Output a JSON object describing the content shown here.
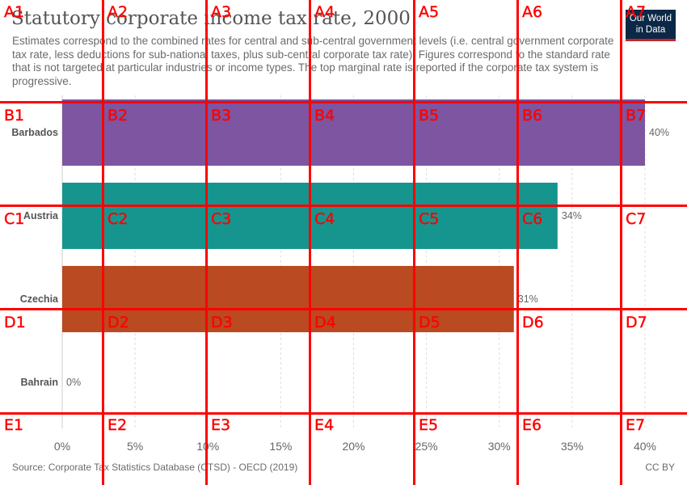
{
  "title": "Statutory corporate income tax rate, 2000",
  "subtitle": "Estimates correspond to the combined rates for central and sub-central government levels (i.e. central government corporate tax rate, less deductions for sub-national taxes, plus sub-central corporate tax rate). Figures correspond to the standard rate that is not targeted at particular industries or income types. The top marginal rate is reported if the corporate tax system is progressive.",
  "logo": {
    "line1": "Our World",
    "line2": "in Data"
  },
  "source": "Source: Corporate Tax Statistics Database (CTSD) - OECD (2019)",
  "license": "CC BY",
  "chart_data": {
    "type": "bar",
    "orientation": "horizontal",
    "categories": [
      "Barbados",
      "Austria",
      "Czechia",
      "Bahrain"
    ],
    "values": [
      40,
      34,
      31,
      0
    ],
    "value_labels": [
      "40%",
      "34%",
      "31%",
      "0%"
    ],
    "colors": [
      "#7d55a0",
      "#16958f",
      "#b94a22",
      "#999999"
    ],
    "xlim": [
      0,
      40
    ],
    "xticks": [
      0,
      5,
      10,
      15,
      20,
      25,
      30,
      35,
      40
    ],
    "xtick_labels": [
      "0%",
      "5%",
      "10%",
      "15%",
      "20%",
      "25%",
      "30%",
      "35%",
      "40%"
    ],
    "grid": "vertical-dashed"
  },
  "overlay": {
    "color": "#ff0000",
    "labels": [
      "A1",
      "A2",
      "A3",
      "A4",
      "A5",
      "A6",
      "A7",
      "B1",
      "B2",
      "B3",
      "B4",
      "B5",
      "B6",
      "B7",
      "C1",
      "C2",
      "C3",
      "C4",
      "C5",
      "C6",
      "C7",
      "D1",
      "D2",
      "D3",
      "D4",
      "D5",
      "D6",
      "D7",
      "E1",
      "E2",
      "E3",
      "E4",
      "E5",
      "E6",
      "E7"
    ]
  }
}
